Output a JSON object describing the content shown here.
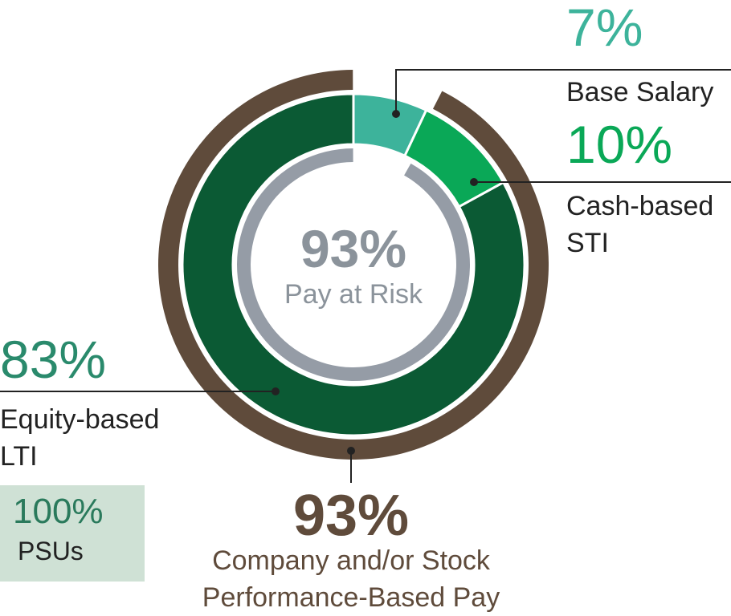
{
  "chart_data": {
    "type": "pie",
    "categories": [
      "Base Salary",
      "Cash-based STI",
      "Equity-based LTI"
    ],
    "values": [
      7,
      10,
      83
    ],
    "value_labels": [
      "7%",
      "10%",
      "83%"
    ],
    "colors": [
      "#3db39b",
      "#0aa857",
      "#0b5a34"
    ],
    "pay_at_risk": {
      "value": 93,
      "value_label": "93%",
      "label": "Pay at Risk",
      "color": "#959ca6"
    },
    "performance_pay": {
      "value": 93,
      "value_label": "93%",
      "label_lines": [
        "Company and/or Stock",
        "Performance-Based Pay"
      ],
      "color": "#5f4b3b"
    },
    "psus": {
      "value_label": "100%",
      "label": "PSUs"
    }
  }
}
